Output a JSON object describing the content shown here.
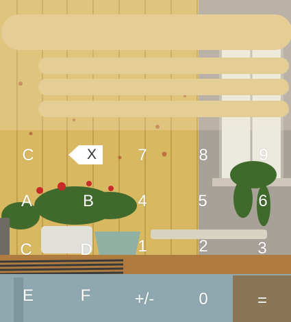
{
  "display": {
    "expression": "",
    "history": [
      "",
      "",
      ""
    ]
  },
  "keys": {
    "clear": "C",
    "backspace": "X",
    "seven": "7",
    "eight": "8",
    "nine": "9",
    "hex_a": "A",
    "hex_b": "B",
    "four": "4",
    "five": "5",
    "six": "6",
    "hex_c": "C",
    "hex_d": "D",
    "one": "1",
    "two": "2",
    "three": "3",
    "hex_e": "E",
    "hex_f": "F",
    "negate": "+/-",
    "zero": "0",
    "equals": "="
  },
  "colors": {
    "pill": "#e6cd95",
    "key_text": "#ffffff",
    "wall": "#d8b860"
  }
}
